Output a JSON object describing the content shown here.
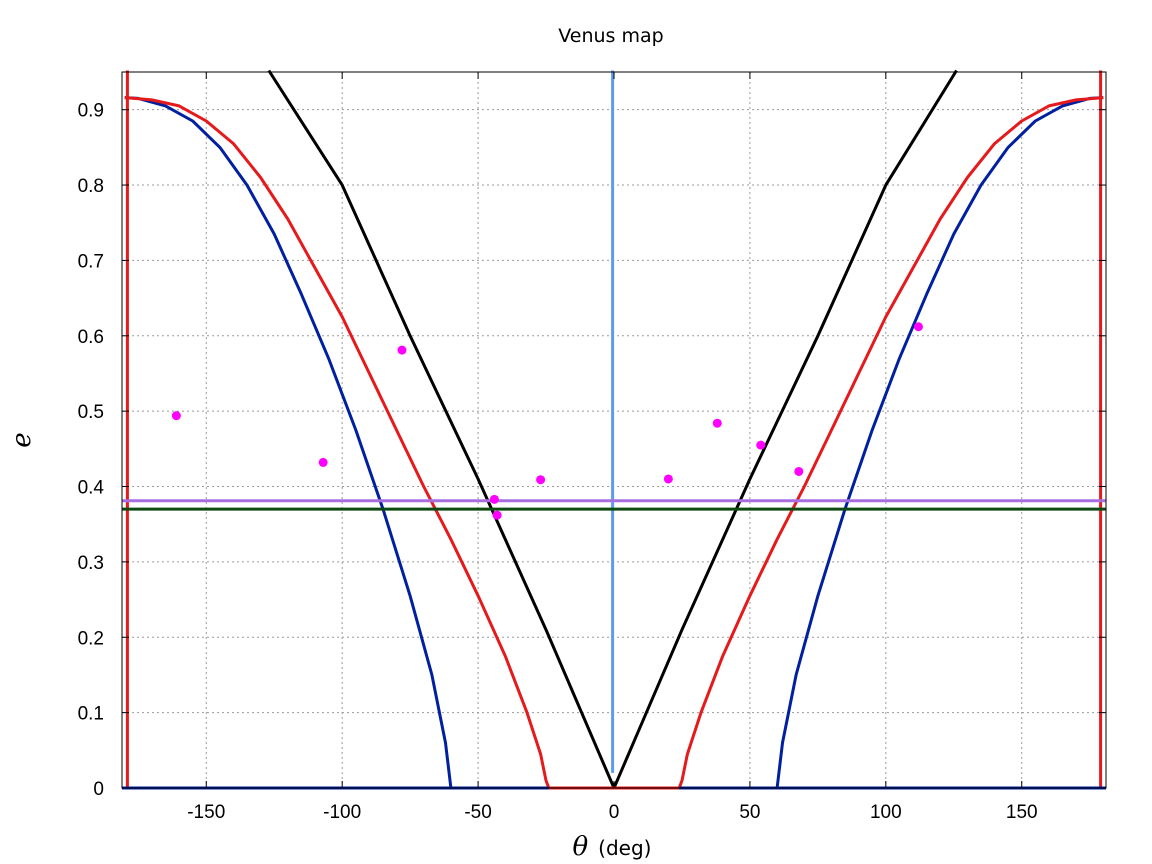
{
  "chart_data": {
    "type": "line",
    "title": "Venus map",
    "xlabel_symbol": "θ",
    "xlabel_unit": "(deg)",
    "ylabel": "e",
    "xlim": [
      -181,
      181
    ],
    "ylim": [
      0,
      0.95
    ],
    "grid": true,
    "x_ticks": [
      -150,
      -100,
      -50,
      0,
      50,
      100,
      150
    ],
    "x_tick_labels": [
      "-150",
      "-100",
      "-50",
      "0",
      "50",
      "100",
      "150"
    ],
    "y_ticks": [
      0,
      0.1,
      0.2,
      0.3,
      0.4,
      0.5,
      0.6,
      0.7,
      0.8,
      0.9
    ],
    "y_tick_labels": [
      "0",
      "0.1",
      "0.2",
      "0.3",
      "0.4",
      "0.5",
      "0.6",
      "0.7",
      "0.8",
      "0.9"
    ],
    "series": [
      {
        "name": "blue-curve",
        "color": "#00209f",
        "points": [
          [
            -180,
            0.916
          ],
          [
            -175,
            0.915
          ],
          [
            -165,
            0.905
          ],
          [
            -155,
            0.885
          ],
          [
            -145,
            0.85
          ],
          [
            -135,
            0.8
          ],
          [
            -125,
            0.735
          ],
          [
            -115,
            0.655
          ],
          [
            -105,
            0.57
          ],
          [
            -95,
            0.475
          ],
          [
            -85,
            0.37
          ],
          [
            -75,
            0.255
          ],
          [
            -67,
            0.15
          ],
          [
            -62,
            0.06
          ],
          [
            -60,
            0
          ],
          [
            60,
            0
          ],
          [
            62,
            0.06
          ],
          [
            67,
            0.15
          ],
          [
            75,
            0.255
          ],
          [
            85,
            0.37
          ],
          [
            95,
            0.475
          ],
          [
            105,
            0.57
          ],
          [
            115,
            0.655
          ],
          [
            125,
            0.735
          ],
          [
            135,
            0.8
          ],
          [
            145,
            0.85
          ],
          [
            155,
            0.885
          ],
          [
            165,
            0.905
          ],
          [
            175,
            0.915
          ],
          [
            180,
            0.916
          ]
        ]
      },
      {
        "name": "red-curve",
        "color": "#e41a1c",
        "points": [
          [
            -180,
            0.916
          ],
          [
            -170,
            0.913
          ],
          [
            -160,
            0.905
          ],
          [
            -150,
            0.885
          ],
          [
            -140,
            0.855
          ],
          [
            -130,
            0.81
          ],
          [
            -120,
            0.755
          ],
          [
            -110,
            0.69
          ],
          [
            -100,
            0.625
          ],
          [
            -90,
            0.55
          ],
          [
            -80,
            0.475
          ],
          [
            -70,
            0.4
          ],
          [
            -60,
            0.33
          ],
          [
            -50,
            0.255
          ],
          [
            -40,
            0.175
          ],
          [
            -32,
            0.1
          ],
          [
            -27,
            0.045
          ],
          [
            -25,
            0.01
          ],
          [
            -24,
            0
          ],
          [
            24,
            0
          ],
          [
            25,
            0.01
          ],
          [
            27,
            0.045
          ],
          [
            32,
            0.1
          ],
          [
            40,
            0.175
          ],
          [
            50,
            0.255
          ],
          [
            60,
            0.33
          ],
          [
            70,
            0.4
          ],
          [
            80,
            0.475
          ],
          [
            90,
            0.55
          ],
          [
            100,
            0.625
          ],
          [
            110,
            0.69
          ],
          [
            120,
            0.755
          ],
          [
            130,
            0.81
          ],
          [
            140,
            0.855
          ],
          [
            150,
            0.885
          ],
          [
            160,
            0.905
          ],
          [
            170,
            0.913
          ],
          [
            180,
            0.916
          ]
        ]
      },
      {
        "name": "black-curve",
        "color": "#000000",
        "points": [
          [
            -127,
            0.952
          ],
          [
            -100,
            0.8
          ],
          [
            -75,
            0.6
          ],
          [
            -50,
            0.41
          ],
          [
            -25,
            0.21
          ],
          [
            0,
            0
          ],
          [
            25,
            0.21
          ],
          [
            50,
            0.41
          ],
          [
            75,
            0.6
          ],
          [
            100,
            0.8
          ],
          [
            126,
            0.952
          ]
        ]
      },
      {
        "name": "red-vertical-left",
        "color": "#e41a1c",
        "points": [
          [
            -179,
            0
          ],
          [
            -179,
            0.952
          ]
        ]
      },
      {
        "name": "red-vertical-right",
        "color": "#e41a1c",
        "points": [
          [
            179,
            0
          ],
          [
            179,
            0.952
          ]
        ]
      },
      {
        "name": "lightblue-vertical",
        "color": "#5b9cef",
        "points": [
          [
            -0.5,
            0.02
          ],
          [
            -0.5,
            0.952
          ]
        ]
      },
      {
        "name": "purple-horizontal",
        "color": "#a86ee0",
        "points": [
          [
            -181,
            0.381
          ],
          [
            181,
            0.381
          ]
        ]
      },
      {
        "name": "green-horizontal",
        "color": "#0d4a12",
        "points": [
          [
            -181,
            0.37
          ],
          [
            181,
            0.37
          ]
        ]
      },
      {
        "name": "red-baseline",
        "color": "#e41a1c",
        "points": [
          [
            -24,
            0
          ],
          [
            24,
            0
          ]
        ]
      },
      {
        "name": "blue-baseline-left",
        "color": "#00209f",
        "points": [
          [
            -181,
            0
          ],
          [
            -24,
            0
          ]
        ]
      },
      {
        "name": "blue-baseline-right",
        "color": "#00209f",
        "points": [
          [
            24,
            0
          ],
          [
            181,
            0
          ]
        ]
      }
    ],
    "scatter": {
      "name": "magenta-points",
      "color": "#ff00ff",
      "points": [
        [
          -161,
          0.494
        ],
        [
          -107,
          0.432
        ],
        [
          -78,
          0.581
        ],
        [
          -44,
          0.383
        ],
        [
          -43,
          0.362
        ],
        [
          -27,
          0.409
        ],
        [
          20,
          0.41
        ],
        [
          38,
          0.484
        ],
        [
          54,
          0.455
        ],
        [
          68,
          0.42
        ],
        [
          112,
          0.612
        ]
      ]
    }
  }
}
